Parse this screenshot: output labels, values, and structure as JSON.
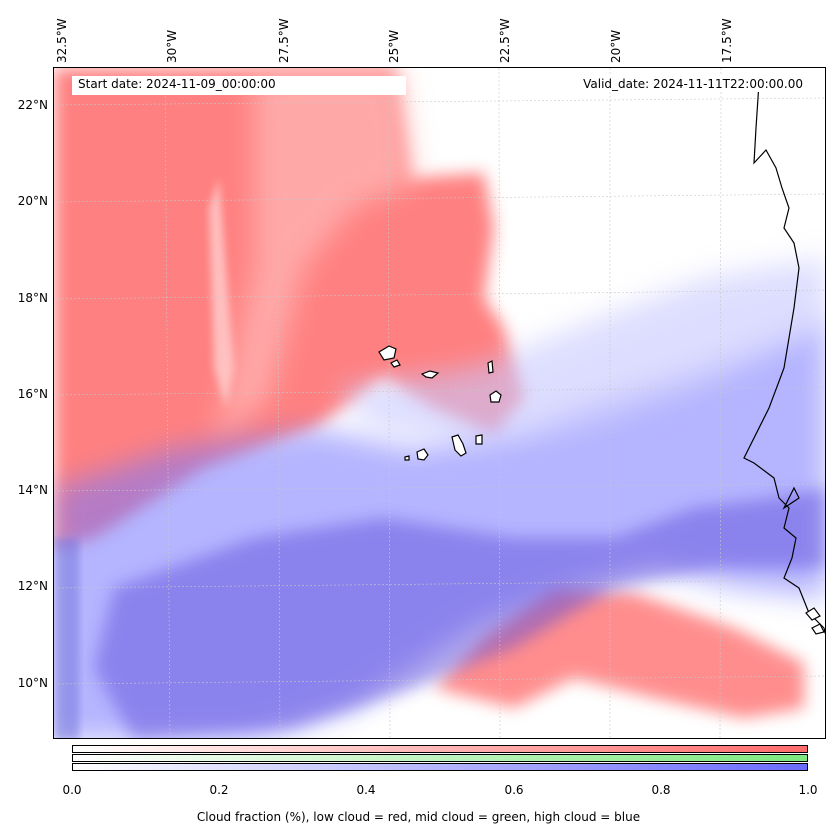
{
  "map": {
    "lon_labels": [
      "32.5°W",
      "30°W",
      "27.5°W",
      "25°W",
      "22.5°W",
      "20°W",
      "17.5°W"
    ],
    "lat_labels": [
      "22°N",
      "20°N",
      "18°N",
      "16°N",
      "14°N",
      "12°N",
      "10°N"
    ],
    "start_date": "Start date: 2024-11-09_00:00:00",
    "valid_date": "Valid_date: 2024-11-11T22:00:00.00",
    "colors": {
      "low_cloud": "#ff6b6b",
      "mid_cloud": "#7de87d",
      "high_cloud": "#6b6bff",
      "coastline": "#000000"
    },
    "layers": [
      "low cloud",
      "mid cloud",
      "high cloud"
    ],
    "features": [
      "Cape Verde islands",
      "West African coastline"
    ]
  },
  "colorbar": {
    "ticks": [
      "0.0",
      "0.2",
      "0.4",
      "0.6",
      "0.8",
      "1.0"
    ],
    "title": "Cloud fraction (%), low cloud = red, mid cloud = green, high cloud = blue"
  }
}
